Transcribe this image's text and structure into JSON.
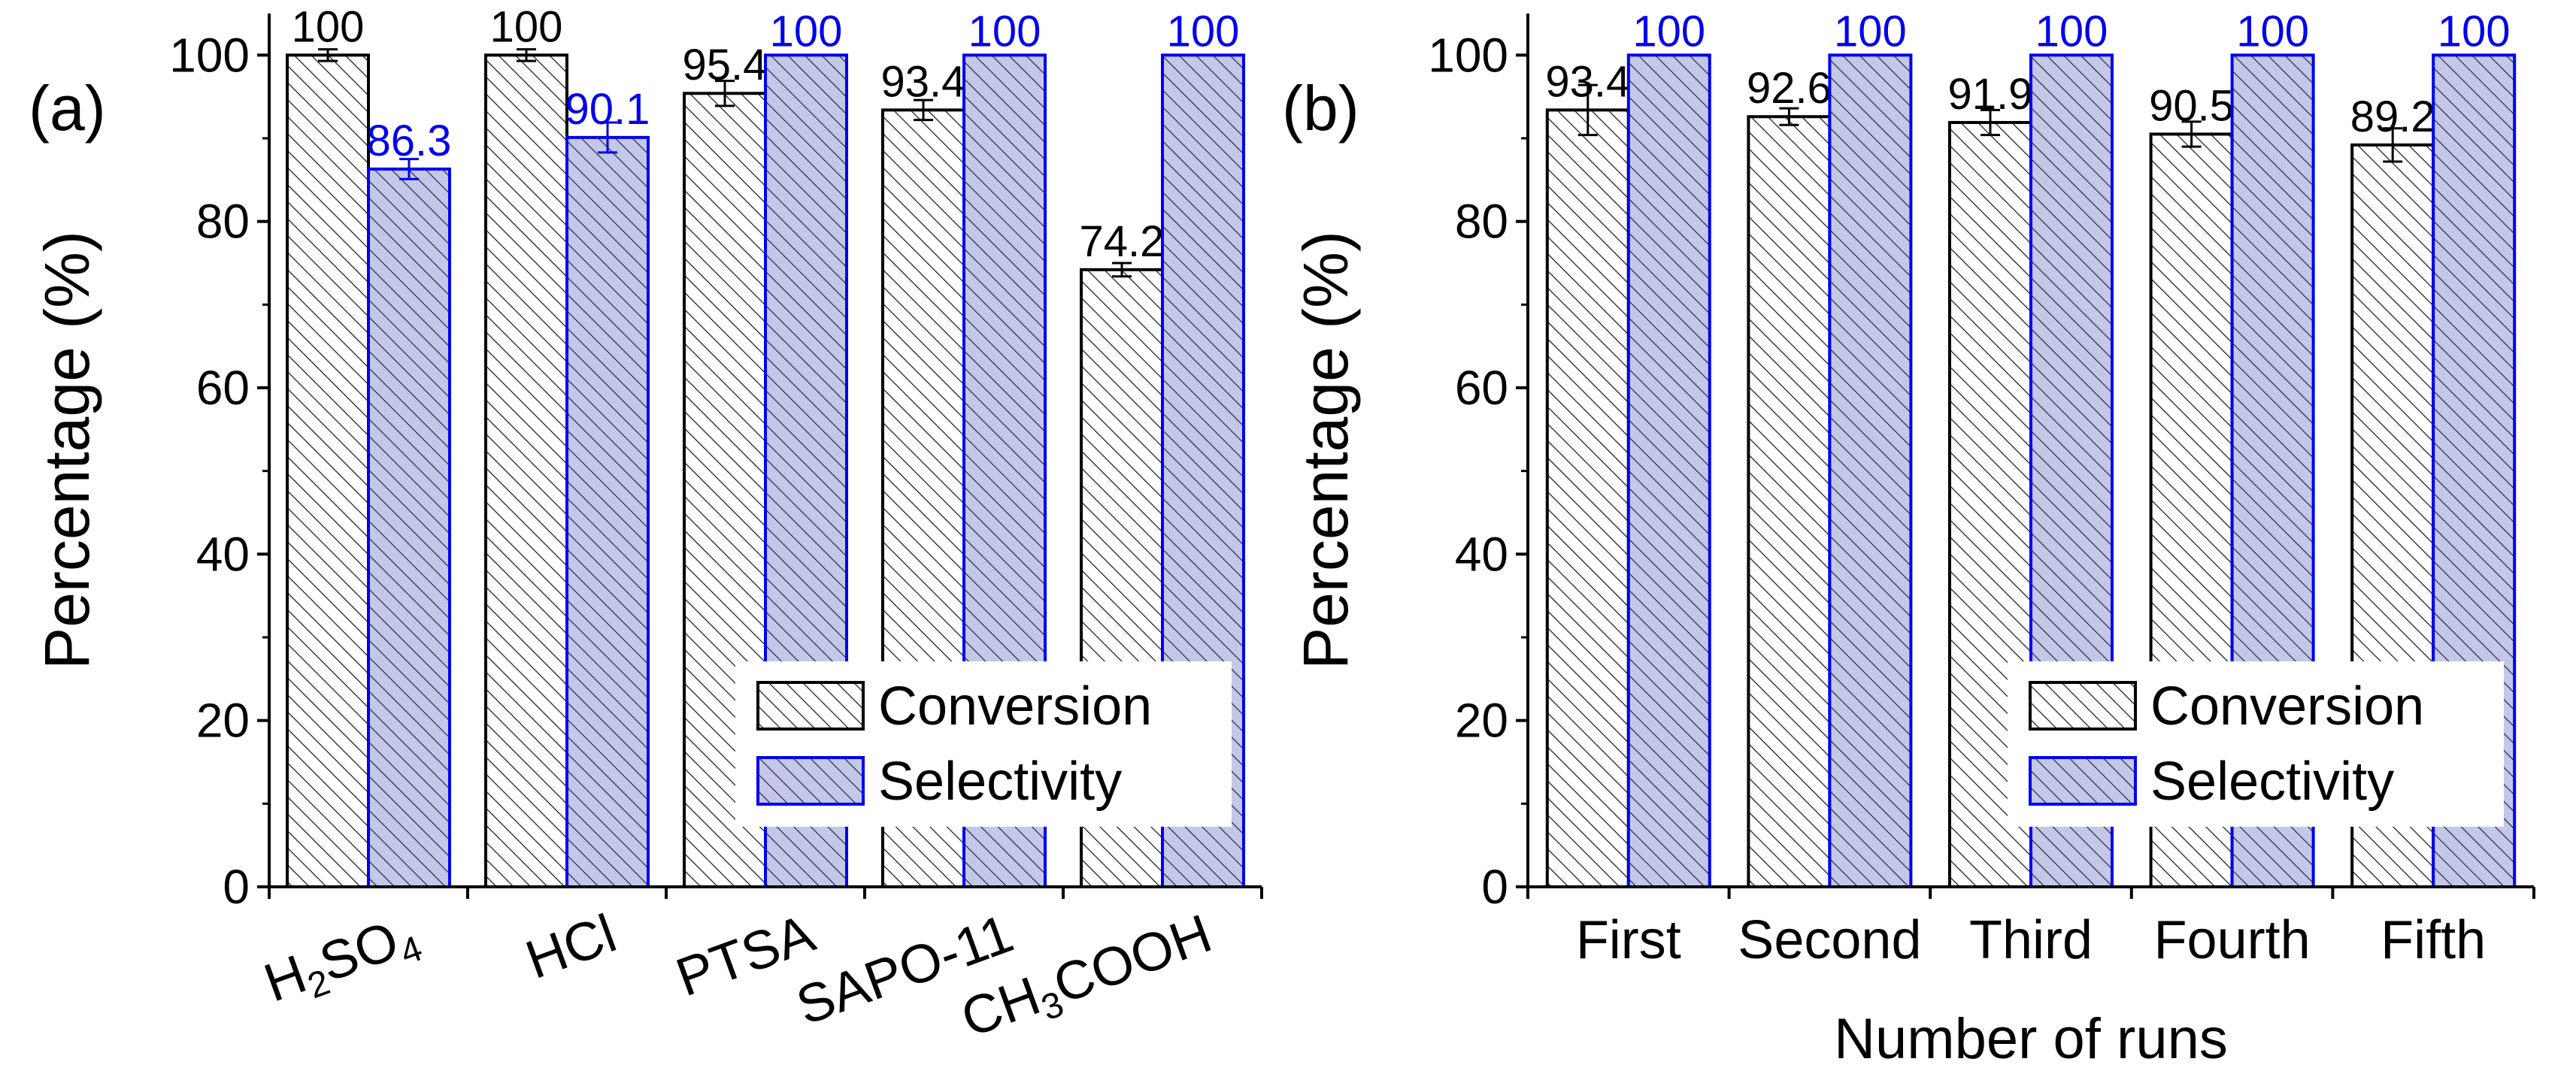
{
  "colors": {
    "conversion_stroke": "#000000",
    "conversion_fill": "#ffffff",
    "selectivity_stroke": "#0000ee",
    "selectivity_fill": "#c4c8e8",
    "hatch_dark": "#222222",
    "hatch_blue": "#303050",
    "label_conversion": "#000000",
    "label_selectivity": "#0000ee"
  },
  "chart_data": [
    {
      "type": "bar",
      "panel_label": "(a)",
      "title": "",
      "xlabel": "",
      "ylabel": "Percentage (%)",
      "ylim": [
        0,
        105
      ],
      "yticks": [
        0,
        20,
        40,
        60,
        80,
        100
      ],
      "categories": [
        {
          "parts": [
            {
              "t": "H"
            },
            {
              "t": "2",
              "sub": true
            },
            {
              "t": "SO"
            },
            {
              "t": "4",
              "sub": true
            }
          ]
        },
        {
          "parts": [
            {
              "t": "HCl"
            }
          ]
        },
        {
          "parts": [
            {
              "t": "PTSA"
            }
          ]
        },
        {
          "parts": [
            {
              "t": "SAPO-11"
            }
          ]
        },
        {
          "parts": [
            {
              "t": "CH"
            },
            {
              "t": "3",
              "sub": true
            },
            {
              "t": "COOH"
            }
          ]
        }
      ],
      "rotated_labels": true,
      "legend_position": "bottom-right",
      "series": [
        {
          "name": "Conversion",
          "values": [
            100,
            100,
            95.4,
            93.4,
            74.2
          ],
          "errors": [
            0.7,
            0.7,
            1.5,
            1.2,
            0.8
          ],
          "labels": [
            "100",
            "100",
            "95.4",
            "93.4",
            "74.2"
          ]
        },
        {
          "name": "Selectivity",
          "values": [
            86.3,
            90.1,
            100,
            100,
            100
          ],
          "errors": [
            1.2,
            1.8,
            0,
            0,
            0
          ],
          "labels": [
            "86.3",
            "90.1",
            "100",
            "100",
            "100"
          ]
        }
      ]
    },
    {
      "type": "bar",
      "panel_label": "(b)",
      "title": "",
      "xlabel": "Number of runs",
      "ylabel": "Percentage (%)",
      "ylim": [
        0,
        105
      ],
      "yticks": [
        0,
        20,
        40,
        60,
        80,
        100
      ],
      "categories": [
        {
          "parts": [
            {
              "t": "First"
            }
          ]
        },
        {
          "parts": [
            {
              "t": "Second"
            }
          ]
        },
        {
          "parts": [
            {
              "t": "Third"
            }
          ]
        },
        {
          "parts": [
            {
              "t": "Fourth"
            }
          ]
        },
        {
          "parts": [
            {
              "t": "Fifth"
            }
          ]
        }
      ],
      "rotated_labels": false,
      "legend_position": "bottom-right",
      "series": [
        {
          "name": "Conversion",
          "values": [
            93.4,
            92.6,
            91.9,
            90.5,
            89.2
          ],
          "errors": [
            3.0,
            1.0,
            1.5,
            1.5,
            2.0
          ],
          "labels": [
            "93.4",
            "92.6",
            "91.9",
            "90.5",
            "89.2"
          ]
        },
        {
          "name": "Selectivity",
          "values": [
            100,
            100,
            100,
            100,
            100
          ],
          "errors": [
            0,
            0,
            0,
            0,
            0
          ],
          "labels": [
            "100",
            "100",
            "100",
            "100",
            "100"
          ]
        }
      ]
    }
  ]
}
